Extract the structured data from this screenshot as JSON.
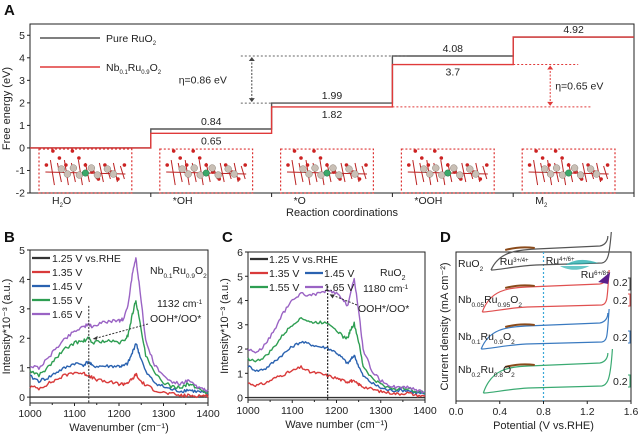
{
  "chart_data": [
    {
      "panel": "A",
      "type": "line",
      "subtype": "step-energy-diagram",
      "xlabel": "Reaction coordinations",
      "ylabel": "Free energy (eV)",
      "ylim": [
        -2,
        5.5
      ],
      "yticks": [
        -2,
        -1,
        0,
        1,
        2,
        3,
        4,
        5
      ],
      "categories": [
        "H₂O",
        "*OH",
        "*O",
        "*OOH",
        "M₂"
      ],
      "series": [
        {
          "name": "Pure RuO₂",
          "color": "#555555",
          "values": [
            0,
            0.84,
            1.99,
            4.08,
            4.92
          ],
          "labels": [
            "",
            "0.84",
            "1.99",
            "4.08",
            "4.92"
          ]
        },
        {
          "name": "Nb₀.₁Ru₀.₉O₂",
          "color": "#e03a3a",
          "values": [
            0,
            0.65,
            1.82,
            3.7,
            4.92
          ],
          "labels": [
            "",
            "0.65",
            "1.82",
            "3.7",
            ""
          ]
        }
      ],
      "legend": {
        "position": "top-left",
        "items": [
          {
            "label_main": "Pure RuO",
            "sub": "2",
            "color": "#555555"
          },
          {
            "label_parts": [
              [
                "Nb",
                ""
              ],
              [
                "0.1",
                "sub"
              ],
              [
                "Ru",
                ""
              ],
              [
                "0.9",
                "sub"
              ],
              [
                "O",
                ""
              ],
              [
                "2",
                "sub"
              ]
            ],
            "color": "#e03a3a"
          }
        ]
      },
      "annotations": [
        {
          "text": "η=0.86 eV",
          "color": "#666666",
          "from": 1.99,
          "to": 4.08
        },
        {
          "text": "η=0.65 eV",
          "color": "#e03a3a",
          "from": 1.82,
          "to": 3.7
        }
      ],
      "insets": "atomic structure models in red dotted boxes under each step"
    },
    {
      "panel": "B",
      "type": "line",
      "xlabel": "Wavenumber (cm⁻¹)",
      "ylabel": "Intensity*10⁻³ (a.u.)",
      "xlim": [
        1000,
        1400
      ],
      "ylim": [
        -0.2,
        5
      ],
      "xticks": [
        1000,
        1100,
        1200,
        1300,
        1400
      ],
      "yticks": [
        0,
        1,
        2,
        3,
        4,
        5
      ],
      "sample": "Nb0.1Ru0.9O2",
      "x": [
        1000,
        1020,
        1040,
        1060,
        1080,
        1100,
        1120,
        1132,
        1140,
        1160,
        1180,
        1200,
        1210,
        1220,
        1230,
        1238,
        1245,
        1260,
        1280,
        1300,
        1320,
        1340,
        1355,
        1370,
        1390,
        1400
      ],
      "series": [
        {
          "name": "1.25 V vs.RHE",
          "color": "#333333",
          "values": [
            0,
            0,
            0,
            0,
            0,
            0,
            0,
            0,
            0,
            0,
            0,
            0,
            0,
            0,
            0,
            0,
            0,
            0,
            0,
            0,
            0,
            0,
            0,
            0,
            0,
            0
          ]
        },
        {
          "name": "1.35 V",
          "color": "#d93a3a",
          "values": [
            0.35,
            0.3,
            0.45,
            0.6,
            0.75,
            0.85,
            0.8,
            0.75,
            0.65,
            0.55,
            0.5,
            0.45,
            0.45,
            0.5,
            0.6,
            0.78,
            0.6,
            0.4,
            0.25,
            0.15,
            0.1,
            0.05,
            0.05,
            0.05,
            0.05,
            0.05
          ]
        },
        {
          "name": "1.45 V",
          "color": "#2a62b0",
          "values": [
            0.7,
            0.55,
            0.65,
            0.85,
            1.0,
            1.15,
            1.1,
            1.2,
            1.05,
            1.05,
            1.05,
            1.05,
            1.05,
            1.15,
            1.5,
            1.85,
            1.5,
            0.85,
            0.5,
            0.35,
            0.25,
            0.2,
            0.25,
            0.2,
            0.15,
            0.15
          ]
        },
        {
          "name": "1.55 V",
          "color": "#2e9e52",
          "values": [
            0.9,
            0.75,
            1.0,
            1.35,
            1.65,
            1.85,
            1.9,
            2.0,
            1.85,
            1.9,
            1.9,
            1.85,
            1.9,
            2.1,
            2.8,
            3.3,
            2.7,
            1.4,
            0.8,
            0.5,
            0.35,
            0.35,
            0.45,
            0.35,
            0.2,
            0.15
          ]
        },
        {
          "name": "1.65 V",
          "color": "#9a63c4",
          "values": [
            1.05,
            1.0,
            1.3,
            1.7,
            2.0,
            2.25,
            2.4,
            2.45,
            2.4,
            2.5,
            2.6,
            2.6,
            2.65,
            3.1,
            4.2,
            4.75,
            3.9,
            1.9,
            1.1,
            0.7,
            0.5,
            0.45,
            0.55,
            0.4,
            0.25,
            0.2
          ]
        }
      ],
      "legend": {
        "position": "top-left",
        "labels": [
          "1.25 V vs.RHE",
          "1.35 V",
          "1.45 V",
          "1.55 V",
          "1.65 V"
        ]
      },
      "sample_label_parts": [
        [
          "Nb",
          ""
        ],
        [
          "0.1",
          "sub"
        ],
        [
          "Ru",
          ""
        ],
        [
          "0.9",
          "sub"
        ],
        [
          "O",
          ""
        ],
        [
          "2",
          "sub"
        ]
      ],
      "annotations": [
        {
          "text": "1132 cm⁻¹",
          "x": 1132
        },
        {
          "text": "OOH*/OO*"
        }
      ]
    },
    {
      "panel": "C",
      "type": "line",
      "xlabel": "Wave number (cm⁻¹)",
      "ylabel": "Intensity*10⁻³ (a.u.)",
      "xlim": [
        1000,
        1400
      ],
      "ylim": [
        -0.1,
        6
      ],
      "xticks": [
        1000,
        1100,
        1200,
        1300,
        1400
      ],
      "yticks": [
        0,
        1,
        2,
        3,
        4,
        5,
        6
      ],
      "sample": "RuO2",
      "x": [
        1000,
        1020,
        1040,
        1060,
        1080,
        1100,
        1120,
        1140,
        1160,
        1180,
        1200,
        1215,
        1225,
        1232,
        1240,
        1250,
        1260,
        1280,
        1300,
        1320,
        1340,
        1360,
        1380,
        1400
      ],
      "series": [
        {
          "name": "1.25 V vs.RHE",
          "color": "#333333",
          "values": [
            0,
            0,
            0,
            0,
            0,
            0,
            0,
            0,
            0,
            0,
            0,
            0,
            0,
            0,
            0,
            0,
            0,
            0,
            0,
            0,
            0,
            0,
            0,
            0
          ]
        },
        {
          "name": "1.35 V",
          "color": "#d93a3a",
          "values": [
            0.6,
            0.5,
            0.6,
            0.8,
            0.95,
            1.1,
            1.25,
            1.05,
            1.0,
            0.9,
            0.8,
            0.7,
            0.65,
            0.7,
            0.65,
            0.55,
            0.45,
            0.35,
            0.25,
            0.2,
            0.15,
            0.2,
            0.1,
            0.05
          ]
        },
        {
          "name": "1.45 V",
          "color": "#2a62b0",
          "values": [
            1.3,
            1.1,
            1.2,
            1.5,
            1.8,
            2.1,
            2.3,
            2.2,
            2.1,
            2.05,
            1.85,
            1.6,
            1.4,
            1.55,
            1.75,
            1.3,
            0.9,
            0.6,
            0.4,
            0.3,
            0.3,
            0.3,
            0.2,
            0.15
          ]
        },
        {
          "name": "1.55 V",
          "color": "#2e9e52",
          "values": [
            1.6,
            1.5,
            1.7,
            2.1,
            2.6,
            3.0,
            3.3,
            3.1,
            3.1,
            3.1,
            2.8,
            2.5,
            2.45,
            2.8,
            3.05,
            2.3,
            1.3,
            0.8,
            0.55,
            0.4,
            0.35,
            0.4,
            0.25,
            0.2
          ]
        },
        {
          "name": "1.65 V",
          "color": "#9a63c4",
          "values": [
            2.0,
            1.85,
            2.2,
            2.8,
            3.5,
            4.0,
            4.3,
            4.2,
            4.3,
            4.4,
            4.3,
            4.0,
            3.8,
            4.3,
            4.9,
            3.6,
            2.0,
            1.1,
            0.7,
            0.5,
            0.4,
            0.45,
            0.3,
            0.25
          ]
        }
      ],
      "legend": {
        "position": "top-left",
        "labels": [
          "1.25 V vs.RHE",
          "1.35 V",
          "1.45 V",
          "1.55 V",
          "1.65 V"
        ]
      },
      "sample_label_parts": [
        [
          "RuO",
          ""
        ],
        [
          "2",
          "sub"
        ]
      ],
      "annotations": [
        {
          "text": "1180 cm⁻¹",
          "x": 1180
        },
        {
          "text": "OOH*/OO*"
        }
      ]
    },
    {
      "panel": "D",
      "type": "line",
      "subtype": "cyclic-voltammetry",
      "xlabel": "Potential (V vs.RHE)",
      "ylabel": "Current density (mA cm⁻²)",
      "xlim": [
        0.0,
        1.6
      ],
      "xticks": [
        "0.0",
        "0.4",
        "0.8",
        "1.2",
        "1.6"
      ],
      "vline": 0.8,
      "scale_bar": "0.2",
      "series": [
        {
          "name_parts": [
            [
              "RuO",
              ""
            ],
            [
              "2",
              "sub"
            ]
          ],
          "color": "#555555"
        },
        {
          "name_parts": [
            [
              "Nb",
              ""
            ],
            [
              "0.05",
              "sub"
            ],
            [
              "Ru",
              ""
            ],
            [
              "0.95",
              "sub"
            ],
            [
              "O",
              ""
            ],
            [
              "2",
              "sub"
            ]
          ],
          "color": "#e05050"
        },
        {
          "name_parts": [
            [
              "Nb",
              ""
            ],
            [
              "0.1",
              "sub"
            ],
            [
              "Ru",
              ""
            ],
            [
              "0.9",
              "sub"
            ],
            [
              "O",
              ""
            ],
            [
              "2",
              "sub"
            ]
          ],
          "color": "#3a7ac0"
        },
        {
          "name_parts": [
            [
              "Nb",
              ""
            ],
            [
              "0.2",
              "sub"
            ],
            [
              "Ru",
              ""
            ],
            [
              "0.8",
              "sub"
            ],
            [
              "O",
              ""
            ],
            [
              "2",
              "sub"
            ]
          ],
          "color": "#3aaa72"
        }
      ],
      "annotations": [
        {
          "text": "Ru",
          "sup": "3+/4+",
          "color": "#3aa8d8"
        },
        {
          "text": "Ru",
          "sup": "4+/6+",
          "color": "#2ab0b0"
        },
        {
          "text": "Ru",
          "sup": "6+/8+",
          "color": "#6a2a9a"
        }
      ]
    }
  ]
}
